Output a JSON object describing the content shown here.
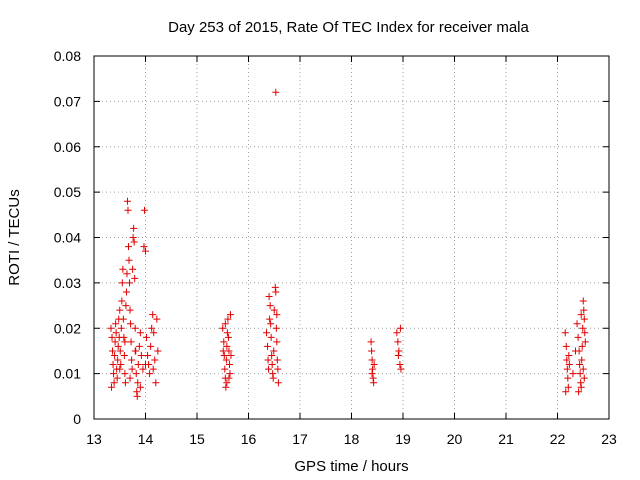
{
  "chart_data": {
    "type": "scatter",
    "title": "Day 253 of 2015, Rate Of TEC Index for receiver mala",
    "xlabel": "GPS time / hours",
    "ylabel": "ROTI / TECUs",
    "xlim": [
      13,
      23
    ],
    "ylim": [
      0,
      0.08
    ],
    "x_ticks": [
      13,
      14,
      15,
      16,
      17,
      18,
      19,
      20,
      21,
      22,
      23
    ],
    "y_ticks": [
      0,
      0.01,
      0.02,
      0.03,
      0.04,
      0.05,
      0.06,
      0.07,
      0.08
    ],
    "x_tick_labels": [
      "13",
      "14",
      "15",
      "16",
      "17",
      "18",
      "19",
      "20",
      "21",
      "22",
      "23"
    ],
    "y_tick_labels": [
      "0",
      "0.01",
      "0.02",
      "0.03",
      "0.04",
      "0.05",
      "0.06",
      "0.07",
      "0.08"
    ],
    "grid": true,
    "marker": "plus",
    "color": "#e00000",
    "series": [
      {
        "points": [
          [
            13.33,
            0.02
          ],
          [
            13.35,
            0.018
          ],
          [
            13.36,
            0.015
          ],
          [
            13.37,
            0.012
          ],
          [
            13.38,
            0.01
          ],
          [
            13.39,
            0.008
          ],
          [
            13.4,
            0.014
          ],
          [
            13.41,
            0.017
          ],
          [
            13.42,
            0.021
          ],
          [
            13.43,
            0.019
          ],
          [
            13.44,
            0.011
          ],
          [
            13.45,
            0.009
          ],
          [
            13.46,
            0.013
          ],
          [
            13.47,
            0.016
          ],
          [
            13.48,
            0.022
          ],
          [
            13.49,
            0.018
          ],
          [
            13.5,
            0.024
          ],
          [
            13.51,
            0.015
          ],
          [
            13.52,
            0.012
          ],
          [
            13.53,
            0.02
          ],
          [
            13.54,
            0.026
          ],
          [
            13.55,
            0.03
          ],
          [
            13.56,
            0.033
          ],
          [
            13.57,
            0.022
          ],
          [
            13.58,
            0.018
          ],
          [
            13.59,
            0.014
          ],
          [
            13.6,
            0.01
          ],
          [
            13.61,
            0.008
          ],
          [
            13.62,
            0.025
          ],
          [
            13.63,
            0.028
          ],
          [
            13.64,
            0.032
          ],
          [
            13.65,
            0.048
          ],
          [
            13.66,
            0.046
          ],
          [
            13.67,
            0.038
          ],
          [
            13.68,
            0.035
          ],
          [
            13.69,
            0.03
          ],
          [
            13.7,
            0.024
          ],
          [
            13.71,
            0.021
          ],
          [
            13.72,
            0.017
          ],
          [
            13.73,
            0.013
          ],
          [
            13.74,
            0.011
          ],
          [
            13.75,
            0.033
          ],
          [
            13.76,
            0.04
          ],
          [
            13.77,
            0.042
          ],
          [
            13.78,
            0.039
          ],
          [
            13.79,
            0.031
          ],
          [
            13.8,
            0.02
          ],
          [
            13.81,
            0.015
          ],
          [
            13.82,
            0.01
          ],
          [
            13.83,
            0.006
          ],
          [
            13.84,
            0.005
          ],
          [
            13.85,
            0.008
          ],
          [
            13.86,
            0.012
          ],
          [
            13.88,
            0.016
          ],
          [
            13.9,
            0.019
          ],
          [
            13.92,
            0.014
          ],
          [
            13.95,
            0.011
          ],
          [
            13.97,
            0.038
          ],
          [
            13.98,
            0.046
          ],
          [
            14.0,
            0.037
          ],
          [
            14.02,
            0.018
          ],
          [
            14.04,
            0.014
          ],
          [
            14.06,
            0.012
          ],
          [
            14.08,
            0.01
          ],
          [
            14.1,
            0.016
          ],
          [
            14.12,
            0.02
          ],
          [
            14.14,
            0.023
          ],
          [
            14.16,
            0.019
          ],
          [
            14.18,
            0.013
          ],
          [
            14.2,
            0.008
          ],
          [
            14.22,
            0.022
          ],
          [
            14.24,
            0.015
          ],
          [
            13.34,
            0.007
          ],
          [
            13.5,
            0.011
          ],
          [
            13.6,
            0.017
          ],
          [
            13.7,
            0.009
          ],
          [
            13.8,
            0.015
          ],
          [
            13.9,
            0.007
          ],
          [
            14.0,
            0.012
          ],
          [
            14.15,
            0.011
          ],
          [
            15.5,
            0.02
          ],
          [
            15.52,
            0.017
          ],
          [
            15.53,
            0.014
          ],
          [
            15.54,
            0.011
          ],
          [
            15.55,
            0.009
          ],
          [
            15.56,
            0.007
          ],
          [
            15.57,
            0.013
          ],
          [
            15.58,
            0.016
          ],
          [
            15.59,
            0.019
          ],
          [
            15.6,
            0.022
          ],
          [
            15.61,
            0.018
          ],
          [
            15.62,
            0.015
          ],
          [
            15.63,
            0.012
          ],
          [
            15.64,
            0.01
          ],
          [
            15.65,
            0.023
          ],
          [
            15.66,
            0.014
          ],
          [
            15.55,
            0.021
          ],
          [
            15.58,
            0.008
          ],
          [
            15.62,
            0.009
          ],
          [
            15.51,
            0.015
          ],
          [
            16.35,
            0.019
          ],
          [
            16.37,
            0.016
          ],
          [
            16.38,
            0.013
          ],
          [
            16.39,
            0.011
          ],
          [
            16.4,
            0.027
          ],
          [
            16.42,
            0.025
          ],
          [
            16.43,
            0.021
          ],
          [
            16.44,
            0.018
          ],
          [
            16.45,
            0.014
          ],
          [
            16.46,
            0.012
          ],
          [
            16.47,
            0.01
          ],
          [
            16.48,
            0.009
          ],
          [
            16.5,
            0.024
          ],
          [
            16.52,
            0.029
          ],
          [
            16.53,
            0.028
          ],
          [
            16.54,
            0.02
          ],
          [
            16.55,
            0.017
          ],
          [
            16.56,
            0.013
          ],
          [
            16.57,
            0.011
          ],
          [
            16.58,
            0.008
          ],
          [
            16.53,
            0.072
          ],
          [
            16.41,
            0.022
          ],
          [
            16.49,
            0.015
          ],
          [
            16.55,
            0.023
          ],
          [
            18.38,
            0.017
          ],
          [
            18.39,
            0.015
          ],
          [
            18.4,
            0.013
          ],
          [
            18.41,
            0.011
          ],
          [
            18.42,
            0.009
          ],
          [
            18.43,
            0.008
          ],
          [
            18.44,
            0.012
          ],
          [
            18.4,
            0.01
          ],
          [
            18.88,
            0.019
          ],
          [
            18.9,
            0.017
          ],
          [
            18.92,
            0.015
          ],
          [
            18.94,
            0.012
          ],
          [
            18.96,
            0.011
          ],
          [
            18.95,
            0.02
          ],
          [
            18.91,
            0.014
          ],
          [
            22.15,
            0.019
          ],
          [
            22.17,
            0.016
          ],
          [
            22.18,
            0.013
          ],
          [
            22.19,
            0.011
          ],
          [
            22.2,
            0.009
          ],
          [
            22.21,
            0.007
          ],
          [
            22.22,
            0.014
          ],
          [
            22.23,
            0.012
          ],
          [
            22.3,
            0.01
          ],
          [
            22.35,
            0.015
          ],
          [
            22.38,
            0.021
          ],
          [
            22.4,
            0.018
          ],
          [
            22.42,
            0.015
          ],
          [
            22.43,
            0.012
          ],
          [
            22.44,
            0.01
          ],
          [
            22.45,
            0.008
          ],
          [
            22.46,
            0.007
          ],
          [
            22.47,
            0.013
          ],
          [
            22.48,
            0.016
          ],
          [
            22.49,
            0.02
          ],
          [
            22.5,
            0.026
          ],
          [
            22.51,
            0.024
          ],
          [
            22.52,
            0.022
          ],
          [
            22.53,
            0.019
          ],
          [
            22.54,
            0.017
          ],
          [
            22.5,
            0.011
          ],
          [
            22.52,
            0.009
          ],
          [
            22.46,
            0.023
          ],
          [
            22.41,
            0.006
          ],
          [
            22.16,
            0.006
          ]
        ]
      }
    ]
  }
}
